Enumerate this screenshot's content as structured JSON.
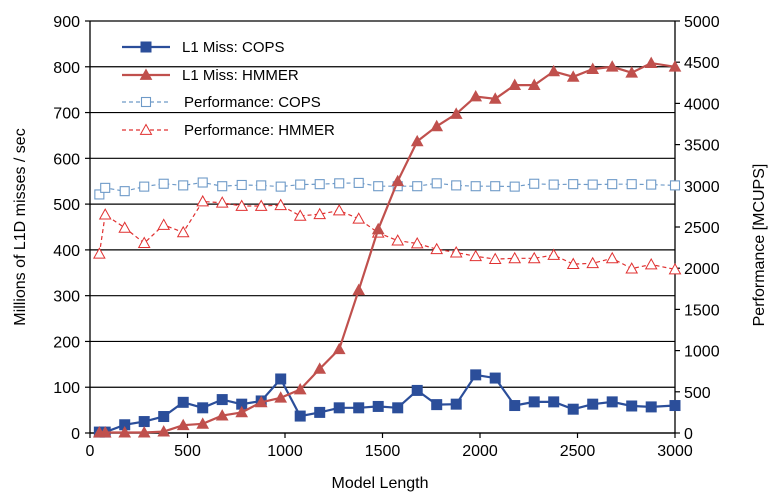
{
  "chart_data": {
    "type": "line",
    "xlabel": "Model Length",
    "ylabel": "Millions of L1D  misses / sec",
    "y2label": "Performance [MCUPS]",
    "xlim": [
      0,
      3000
    ],
    "ylim": [
      0,
      900
    ],
    "y2lim": [
      0,
      5000
    ],
    "xticks": [
      "0",
      "500",
      "1000",
      "1500",
      "2000",
      "2500",
      "3000"
    ],
    "yticks": [
      "0",
      "100",
      "200",
      "300",
      "400",
      "500",
      "600",
      "700",
      "800",
      "900"
    ],
    "y2ticks": [
      "0",
      "500",
      "1000",
      "1500",
      "2000",
      "2500",
      "3000",
      "3500",
      "4000",
      "4500",
      "5000"
    ],
    "grid": "horizontal",
    "legend_position": "top-left",
    "series": [
      {
        "name": "L1 Miss: COPS",
        "axis": "left",
        "color": "#2b4e9a",
        "marker": "square-filled",
        "line": "solid",
        "x": [
          48,
          78,
          178,
          278,
          378,
          478,
          578,
          678,
          778,
          878,
          978,
          1078,
          1178,
          1278,
          1378,
          1478,
          1578,
          1678,
          1778,
          1878,
          1978,
          2078,
          2178,
          2278,
          2378,
          2478,
          2578,
          2678,
          2778,
          2878,
          3000
        ],
        "y": [
          2,
          2,
          18,
          25,
          36,
          67,
          55,
          73,
          63,
          70,
          118,
          37,
          45,
          55,
          55,
          58,
          55,
          93,
          62,
          63,
          127,
          120,
          60,
          68,
          68,
          52,
          63,
          68,
          59,
          57,
          60
        ]
      },
      {
        "name": "L1 Miss: HMMER",
        "axis": "left",
        "color": "#c0504d",
        "marker": "triangle-filled",
        "line": "solid",
        "x": [
          48,
          78,
          178,
          278,
          378,
          478,
          578,
          678,
          778,
          878,
          978,
          1078,
          1178,
          1278,
          1378,
          1478,
          1578,
          1678,
          1778,
          1878,
          1978,
          2078,
          2178,
          2278,
          2378,
          2478,
          2578,
          2678,
          2778,
          2878,
          3000
        ],
        "y": [
          1,
          1,
          1,
          1,
          3,
          17,
          20,
          38,
          45,
          67,
          77,
          95,
          140,
          183,
          312,
          445,
          550,
          637,
          670,
          697,
          735,
          730,
          760,
          760,
          790,
          778,
          795,
          800,
          787,
          808,
          800
        ]
      },
      {
        "name": "Performance: COPS",
        "axis": "right",
        "color": "#6e9ac8",
        "marker": "square-open",
        "line": "dashed",
        "x": [
          48,
          78,
          178,
          278,
          378,
          478,
          578,
          678,
          778,
          878,
          978,
          1078,
          1178,
          1278,
          1378,
          1478,
          1578,
          1678,
          1778,
          1878,
          1978,
          2078,
          2178,
          2278,
          2378,
          2478,
          2578,
          2678,
          2778,
          2878,
          3000
        ],
        "y": [
          2895,
          2975,
          2935,
          2990,
          3025,
          3005,
          3040,
          2995,
          3010,
          3005,
          2990,
          3015,
          3020,
          3030,
          3035,
          2995,
          2995,
          2995,
          3030,
          3005,
          2995,
          2995,
          2990,
          3025,
          3015,
          3020,
          3015,
          3020,
          3020,
          3015,
          3005
        ]
      },
      {
        "name": "Performance: HMMER",
        "axis": "right",
        "color": "#e03030",
        "marker": "triangle-open",
        "line": "dashed",
        "x": [
          48,
          78,
          178,
          278,
          378,
          478,
          578,
          678,
          778,
          878,
          978,
          1078,
          1178,
          1278,
          1378,
          1478,
          1578,
          1678,
          1778,
          1878,
          1978,
          2078,
          2178,
          2278,
          2378,
          2478,
          2578,
          2678,
          2778,
          2878,
          3000
        ],
        "y": [
          2175,
          2650,
          2490,
          2305,
          2525,
          2435,
          2810,
          2795,
          2755,
          2755,
          2765,
          2635,
          2655,
          2700,
          2600,
          2430,
          2335,
          2300,
          2230,
          2190,
          2145,
          2110,
          2120,
          2120,
          2160,
          2050,
          2060,
          2120,
          1995,
          2045,
          1985
        ]
      }
    ]
  }
}
